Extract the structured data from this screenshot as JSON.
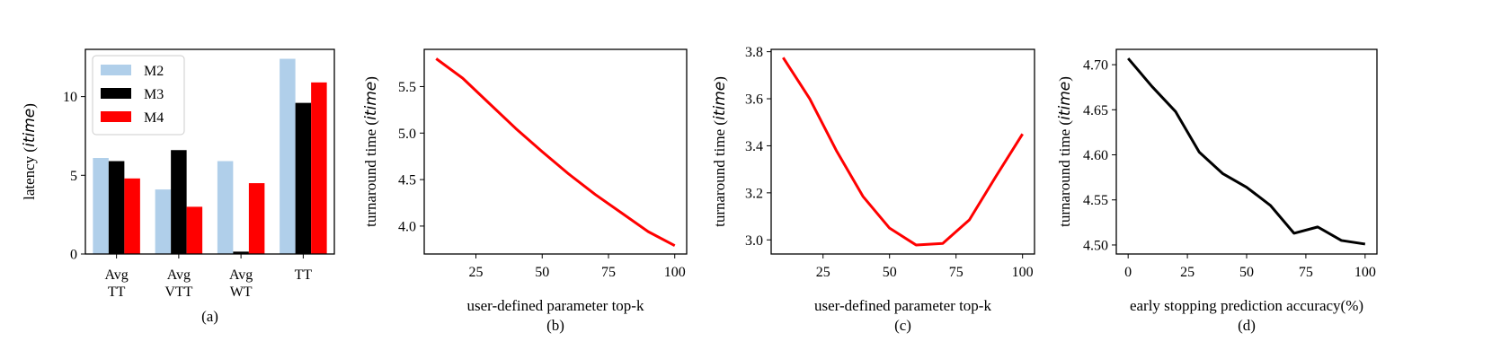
{
  "chart_data": [
    {
      "type": "bar",
      "caption": "(a)",
      "ylabel": "latency",
      "ylabel_unit": "itime",
      "categories": [
        [
          "Avg",
          "TT"
        ],
        [
          "Avg",
          "VTT"
        ],
        [
          "Avg",
          "WT"
        ],
        [
          "TT"
        ]
      ],
      "series": [
        {
          "name": "M2",
          "color": "#b0cfea",
          "values": [
            6.1,
            4.1,
            5.9,
            12.4
          ]
        },
        {
          "name": "M3",
          "color": "#000000",
          "values": [
            5.9,
            6.6,
            0.15,
            9.6
          ]
        },
        {
          "name": "M4",
          "color": "#ff0000",
          "values": [
            4.8,
            3.0,
            4.5,
            10.9
          ]
        }
      ],
      "ylim": [
        0,
        13.0
      ],
      "yticks": [
        0,
        5,
        10
      ],
      "legend": "top-left"
    },
    {
      "type": "line",
      "caption": "(b)",
      "xlabel": "user-defined parameter top-k",
      "ylabel": "turnaround time",
      "ylabel_unit": "itime",
      "x": [
        10,
        20,
        30,
        40,
        50,
        60,
        70,
        80,
        90,
        100
      ],
      "series": [
        {
          "color": "#ff0000",
          "values": [
            5.8,
            5.59,
            5.32,
            5.05,
            4.8,
            4.56,
            4.34,
            4.14,
            3.94,
            3.79
          ]
        }
      ],
      "xlim": [
        5.5,
        104.5
      ],
      "ylim": [
        3.7,
        5.9
      ],
      "xticks": [
        25,
        50,
        75,
        100
      ],
      "yticks": [
        4.0,
        4.5,
        5.0,
        5.5
      ],
      "ytick_labels": [
        "4.0",
        "4.5",
        "5.0",
        "5.5"
      ]
    },
    {
      "type": "line",
      "caption": "(c)",
      "xlabel": "user-defined parameter top-k",
      "ylabel": "turnaround time",
      "ylabel_unit": "itime",
      "x": [
        10,
        20,
        30,
        40,
        50,
        60,
        70,
        80,
        90,
        100
      ],
      "series": [
        {
          "color": "#ff0000",
          "values": [
            3.775,
            3.6,
            3.38,
            3.185,
            3.05,
            2.978,
            2.985,
            3.085,
            3.27,
            3.45
          ]
        }
      ],
      "xlim": [
        5.5,
        104.5
      ],
      "ylim": [
        2.94,
        3.81
      ],
      "xticks": [
        25,
        50,
        75,
        100
      ],
      "yticks": [
        3.0,
        3.2,
        3.4,
        3.6,
        3.8
      ],
      "ytick_labels": [
        "3.0",
        "3.2",
        "3.4",
        "3.6",
        "3.8"
      ]
    },
    {
      "type": "line",
      "caption": "(d)",
      "xlabel": "early stopping prediction accuracy(%)",
      "ylabel": "turnaround time",
      "ylabel_unit": "itime",
      "x": [
        0,
        10,
        20,
        30,
        40,
        50,
        60,
        70,
        80,
        90,
        100
      ],
      "series": [
        {
          "color": "#000000",
          "values": [
            4.707,
            4.676,
            4.648,
            4.603,
            4.579,
            4.564,
            4.544,
            4.513,
            4.52,
            4.505,
            4.501
          ]
        }
      ],
      "xlim": [
        -5,
        105
      ],
      "ylim": [
        4.49,
        4.717
      ],
      "xticks": [
        0,
        25,
        50,
        75,
        100
      ],
      "yticks": [
        4.5,
        4.55,
        4.6,
        4.65,
        4.7
      ],
      "ytick_labels": [
        "4.50",
        "4.55",
        "4.60",
        "4.65",
        "4.70"
      ]
    }
  ]
}
